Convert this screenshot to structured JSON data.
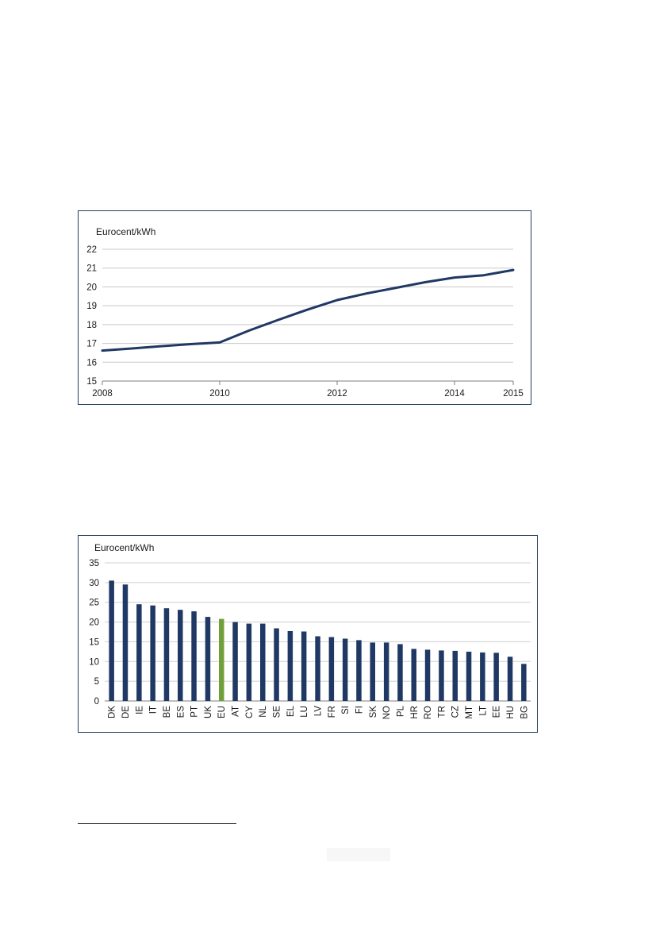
{
  "chart_data": [
    {
      "type": "line",
      "ylabel": "Eurocent/kWh",
      "ylim": [
        15,
        22
      ],
      "yticks": [
        15,
        16,
        17,
        18,
        19,
        20,
        21,
        22
      ],
      "xlim": [
        2008,
        2015
      ],
      "xticks": [
        "2008",
        "2010",
        "2012",
        "2014",
        "2015"
      ],
      "grid": true,
      "series": [
        {
          "color": "#1f3864",
          "points": [
            {
              "x": 2008.0,
              "y": 16.62
            },
            {
              "x": 2008.5,
              "y": 16.73
            },
            {
              "x": 2009.0,
              "y": 16.85
            },
            {
              "x": 2009.5,
              "y": 16.96
            },
            {
              "x": 2010.0,
              "y": 17.05
            },
            {
              "x": 2010.5,
              "y": 17.68
            },
            {
              "x": 2011.0,
              "y": 18.25
            },
            {
              "x": 2011.5,
              "y": 18.8
            },
            {
              "x": 2012.0,
              "y": 19.3
            },
            {
              "x": 2012.5,
              "y": 19.65
            },
            {
              "x": 2013.0,
              "y": 19.95
            },
            {
              "x": 2013.5,
              "y": 20.25
            },
            {
              "x": 2014.0,
              "y": 20.5
            },
            {
              "x": 2014.5,
              "y": 20.62
            },
            {
              "x": 2015.0,
              "y": 20.9
            }
          ]
        }
      ]
    },
    {
      "type": "bar",
      "ylabel": "Eurocent/kWh",
      "ylim": [
        0,
        35
      ],
      "yticks": [
        0,
        5,
        10,
        15,
        20,
        25,
        30,
        35
      ],
      "grid": true,
      "bar_color": "#1f3864",
      "highlight": {
        "category": "EU",
        "color": "#70a03c"
      },
      "categories": [
        "DK",
        "DE",
        "IE",
        "IT",
        "BE",
        "ES",
        "PT",
        "UK",
        "EU",
        "AT",
        "CY",
        "NL",
        "SE",
        "EL",
        "LU",
        "LV",
        "FR",
        "SI",
        "FI",
        "SK",
        "NO",
        "PL",
        "HR",
        "RO",
        "TR",
        "CZ",
        "MT",
        "LT",
        "EE",
        "HU",
        "BG"
      ],
      "values": [
        30.5,
        29.5,
        24.5,
        24.2,
        23.5,
        23.1,
        22.7,
        21.3,
        20.8,
        20.0,
        19.6,
        19.6,
        18.4,
        17.7,
        17.6,
        16.4,
        16.2,
        15.8,
        15.4,
        14.8,
        14.8,
        14.4,
        13.2,
        13.0,
        12.8,
        12.7,
        12.5,
        12.3,
        12.2,
        11.2,
        9.4
      ]
    }
  ]
}
